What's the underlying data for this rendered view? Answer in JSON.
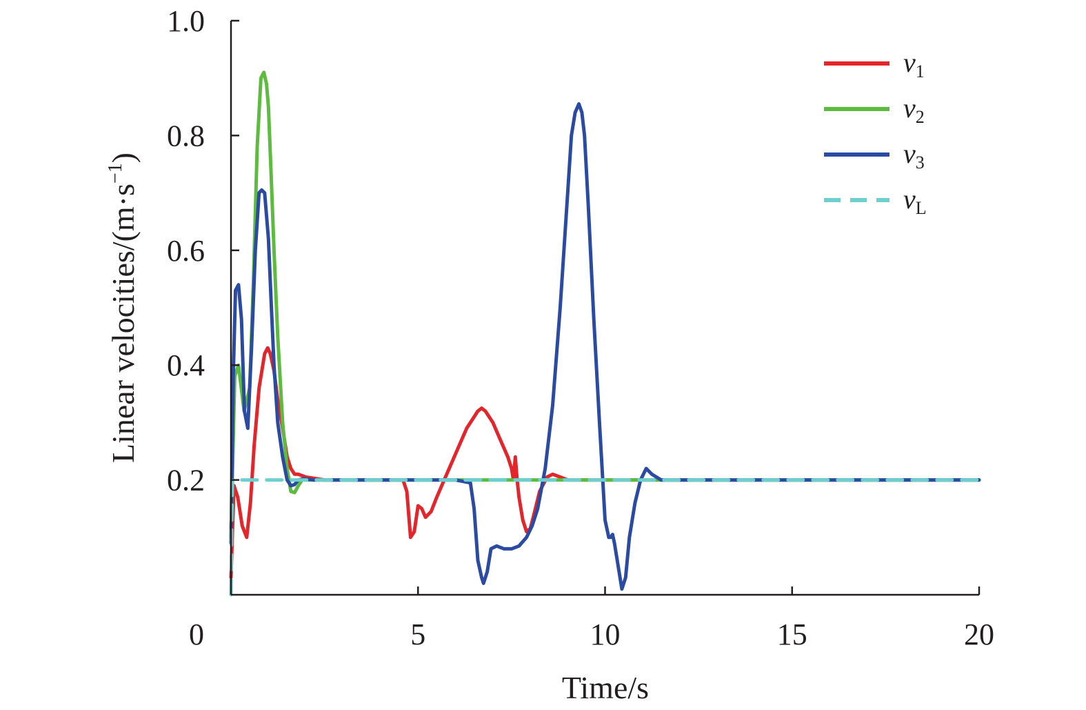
{
  "chart_data": {
    "type": "line",
    "title": "",
    "xlabel": "Time/s",
    "ylabel_main": "Linear velocities/(m·s",
    "ylabel_sup": "−1",
    "ylabel_close": ")",
    "xlim": [
      0,
      20
    ],
    "ylim": [
      0,
      1.0
    ],
    "x_ticks": [
      0,
      5,
      10,
      15,
      20
    ],
    "x_tick_labels": [
      "0",
      "5",
      "10",
      "15",
      "20"
    ],
    "y_ticks": [
      0.2,
      0.4,
      0.6,
      0.8,
      1.0
    ],
    "y_tick_labels": [
      "0.2",
      "0.4",
      "0.6",
      "0.8",
      "1.0"
    ],
    "grid": false,
    "legend_position": "top-right",
    "series": [
      {
        "name": "v",
        "subscript": "1",
        "color": "#e3262b",
        "dash": "solid",
        "x": [
          0,
          0.08,
          0.18,
          0.3,
          0.42,
          0.52,
          0.62,
          0.75,
          0.9,
          0.98,
          1.05,
          1.15,
          1.25,
          1.38,
          1.5,
          1.6,
          1.7,
          1.8,
          2.0,
          2.5,
          3.0,
          4.0,
          4.6,
          4.7,
          4.8,
          4.9,
          5.0,
          5.1,
          5.2,
          5.35,
          5.5,
          5.7,
          5.9,
          6.1,
          6.3,
          6.5,
          6.6,
          6.7,
          6.8,
          7.0,
          7.2,
          7.4,
          7.5,
          7.55,
          7.6,
          7.65,
          7.7,
          7.8,
          7.9,
          8.0,
          8.1,
          8.25,
          8.45,
          8.6,
          8.8,
          9.0,
          9.5,
          10,
          12,
          15,
          20
        ],
        "y": [
          0.03,
          0.19,
          0.17,
          0.12,
          0.1,
          0.16,
          0.26,
          0.36,
          0.42,
          0.43,
          0.42,
          0.39,
          0.34,
          0.29,
          0.24,
          0.22,
          0.21,
          0.21,
          0.205,
          0.2,
          0.2,
          0.2,
          0.2,
          0.18,
          0.1,
          0.11,
          0.155,
          0.15,
          0.135,
          0.145,
          0.17,
          0.2,
          0.23,
          0.26,
          0.29,
          0.31,
          0.32,
          0.325,
          0.32,
          0.3,
          0.27,
          0.24,
          0.22,
          0.2,
          0.24,
          0.2,
          0.17,
          0.13,
          0.11,
          0.115,
          0.14,
          0.18,
          0.205,
          0.21,
          0.205,
          0.2,
          0.2,
          0.2,
          0.2,
          0.2,
          0.2
        ]
      },
      {
        "name": "v",
        "subscript": "2",
        "color": "#5dbb3f",
        "dash": "solid",
        "x": [
          0,
          0.1,
          0.2,
          0.35,
          0.5,
          0.6,
          0.7,
          0.8,
          0.88,
          0.95,
          1.0,
          1.08,
          1.15,
          1.25,
          1.38,
          1.5,
          1.6,
          1.7,
          1.8,
          1.9,
          2.05,
          2.3,
          3.0,
          5.0,
          7.0,
          9.0,
          12,
          15,
          20
        ],
        "y": [
          0.1,
          0.38,
          0.4,
          0.32,
          0.36,
          0.55,
          0.78,
          0.9,
          0.91,
          0.89,
          0.85,
          0.72,
          0.6,
          0.45,
          0.3,
          0.22,
          0.18,
          0.178,
          0.19,
          0.2,
          0.2,
          0.2,
          0.2,
          0.2,
          0.2,
          0.2,
          0.2,
          0.2,
          0.2
        ]
      },
      {
        "name": "v",
        "subscript": "3",
        "color": "#2b4ba3",
        "dash": "solid",
        "x": [
          0,
          0.06,
          0.12,
          0.2,
          0.28,
          0.36,
          0.45,
          0.55,
          0.65,
          0.75,
          0.82,
          0.9,
          1.0,
          1.08,
          1.15,
          1.25,
          1.38,
          1.5,
          1.6,
          1.7,
          1.8,
          1.95,
          2.2,
          3.0,
          4.0,
          5.0,
          6.0,
          6.4,
          6.5,
          6.6,
          6.7,
          6.75,
          6.85,
          6.95,
          7.1,
          7.3,
          7.5,
          7.7,
          7.9,
          8.05,
          8.2,
          8.4,
          8.6,
          8.8,
          9.0,
          9.1,
          9.2,
          9.3,
          9.38,
          9.45,
          9.55,
          9.7,
          9.85,
          10.0,
          10.1,
          10.15,
          10.2,
          10.25,
          10.35,
          10.45,
          10.55,
          10.65,
          10.8,
          10.95,
          11.1,
          11.25,
          11.5,
          12,
          15,
          20
        ],
        "y": [
          0.09,
          0.38,
          0.53,
          0.54,
          0.48,
          0.32,
          0.29,
          0.43,
          0.6,
          0.7,
          0.705,
          0.7,
          0.62,
          0.5,
          0.4,
          0.3,
          0.24,
          0.2,
          0.19,
          0.192,
          0.2,
          0.202,
          0.2,
          0.2,
          0.2,
          0.2,
          0.2,
          0.195,
          0.15,
          0.06,
          0.03,
          0.02,
          0.04,
          0.08,
          0.085,
          0.08,
          0.08,
          0.085,
          0.1,
          0.12,
          0.15,
          0.22,
          0.33,
          0.5,
          0.7,
          0.8,
          0.84,
          0.855,
          0.84,
          0.8,
          0.68,
          0.48,
          0.3,
          0.13,
          0.1,
          0.1,
          0.105,
          0.09,
          0.05,
          0.01,
          0.03,
          0.1,
          0.16,
          0.2,
          0.22,
          0.21,
          0.2,
          0.2,
          0.2,
          0.2
        ]
      },
      {
        "name": "v",
        "subscript": "L",
        "color": "#6ecfcf",
        "dash": "dashed",
        "x": [
          0,
          0.02,
          0.04,
          20
        ],
        "y": [
          0,
          0.13,
          0.2,
          0.2
        ]
      }
    ]
  }
}
